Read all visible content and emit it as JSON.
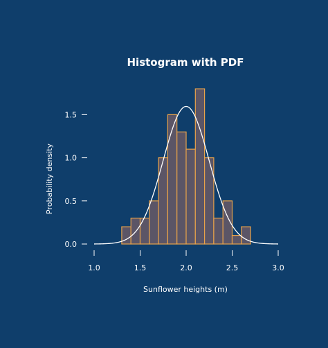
{
  "chart_data": {
    "type": "bar",
    "title": "Histogram with PDF",
    "xlabel": "Sunflower heights (m)",
    "ylabel": "Probability density",
    "xlim": [
      1.0,
      3.0
    ],
    "ylim": [
      0.0,
      1.8
    ],
    "xticks": [
      "1.0",
      "1.5",
      "2.0",
      "2.5",
      "3.0"
    ],
    "xtick_values": [
      1.0,
      1.5,
      2.0,
      2.5,
      3.0
    ],
    "yticks": [
      "0.0",
      "0.5",
      "1.0",
      "1.5"
    ],
    "ytick_values": [
      0.0,
      0.5,
      1.0,
      1.5
    ],
    "grid": false,
    "bin_width": 0.1,
    "bins": [
      {
        "x0": 1.3,
        "value": 0.2
      },
      {
        "x0": 1.4,
        "value": 0.3
      },
      {
        "x0": 1.5,
        "value": 0.3
      },
      {
        "x0": 1.6,
        "value": 0.5
      },
      {
        "x0": 1.7,
        "value": 1.0
      },
      {
        "x0": 1.8,
        "value": 1.5
      },
      {
        "x0": 1.9,
        "value": 1.3
      },
      {
        "x0": 2.0,
        "value": 1.1
      },
      {
        "x0": 2.1,
        "value": 1.8
      },
      {
        "x0": 2.2,
        "value": 1.0
      },
      {
        "x0": 2.3,
        "value": 0.3
      },
      {
        "x0": 2.4,
        "value": 0.5
      },
      {
        "x0": 2.5,
        "value": 0.1
      },
      {
        "x0": 2.6,
        "value": 0.2
      }
    ],
    "pdf": {
      "type": "normal",
      "mean": 2.0,
      "std": 0.25
    },
    "colors": {
      "background": "#0f3e6b",
      "bar_fill": "#5b5566",
      "bar_edge": "#e8a24a",
      "curve": "#ffffff",
      "text": "#ffffff"
    }
  }
}
